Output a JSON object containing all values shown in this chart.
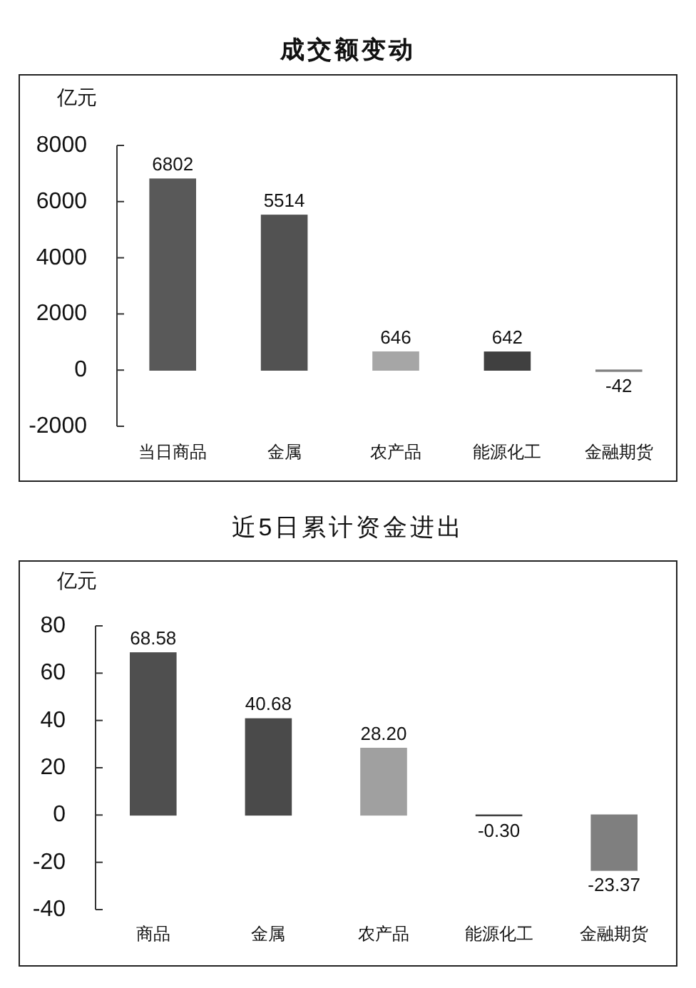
{
  "chart_data": [
    {
      "type": "bar",
      "title": "成交额变动",
      "ylabel": "亿元",
      "categories": [
        "当日商品",
        "金属",
        "农产品",
        "能源化工",
        "金融期货"
      ],
      "values": [
        6802,
        5514,
        646,
        642,
        -42
      ],
      "colors": [
        "#595959",
        "#525252",
        "#a6a6a6",
        "#404040",
        "#7f7f7f"
      ],
      "ylim": [
        -2000,
        8000
      ],
      "yticks": [
        -2000,
        0,
        2000,
        4000,
        6000,
        8000
      ],
      "data_labels": true
    },
    {
      "type": "bar",
      "title": "近5日累计资金进出",
      "ylabel": "亿元",
      "categories": [
        "商品",
        "金属",
        "农产品",
        "能源化工",
        "金融期货"
      ],
      "values": [
        68.58,
        40.68,
        28.2,
        -0.3,
        -23.37
      ],
      "value_labels": [
        "68.58",
        "40.68",
        "28.20",
        "-0.30",
        "-23.37"
      ],
      "colors": [
        "#4f4f4f",
        "#4a4a4a",
        "#a0a0a0",
        "#404040",
        "#7f7f7f"
      ],
      "ylim": [
        -40,
        80
      ],
      "yticks": [
        -40,
        -20,
        0,
        20,
        40,
        60,
        80
      ]
    }
  ]
}
